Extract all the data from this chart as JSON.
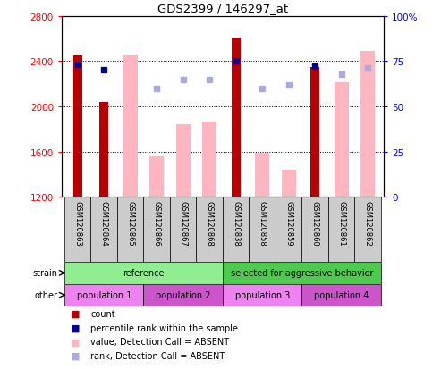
{
  "title": "GDS2399 / 146297_at",
  "samples": [
    "GSM120863",
    "GSM120864",
    "GSM120865",
    "GSM120866",
    "GSM120867",
    "GSM120868",
    "GSM120838",
    "GSM120858",
    "GSM120859",
    "GSM120860",
    "GSM120861",
    "GSM120862"
  ],
  "count_values": [
    2450,
    2040,
    null,
    null,
    null,
    null,
    2610,
    null,
    null,
    2350,
    null,
    null
  ],
  "absent_bar_values": [
    null,
    null,
    2460,
    1560,
    1840,
    1870,
    null,
    1590,
    1440,
    null,
    2210,
    2490
  ],
  "percentile_rank_pct": [
    73,
    70,
    null,
    null,
    null,
    null,
    75,
    null,
    null,
    72,
    null,
    null
  ],
  "absent_rank_pct": [
    null,
    null,
    null,
    60,
    65,
    65,
    null,
    60,
    62,
    null,
    68,
    71
  ],
  "ylim": [
    1200,
    2800
  ],
  "yticks": [
    1200,
    1600,
    2000,
    2400,
    2800
  ],
  "y2lim": [
    0,
    100
  ],
  "y2ticks": [
    0,
    25,
    50,
    75,
    100
  ],
  "y2ticklabels": [
    "0",
    "25",
    "50",
    "75",
    "100%"
  ],
  "strain_groups": [
    {
      "label": "reference",
      "start": 0,
      "end": 6,
      "color": "#90EE90"
    },
    {
      "label": "selected for aggressive behavior",
      "start": 6,
      "end": 12,
      "color": "#4ECA4E"
    }
  ],
  "other_groups": [
    {
      "label": "population 1",
      "start": 0,
      "end": 3,
      "color": "#EE82EE"
    },
    {
      "label": "population 2",
      "start": 3,
      "end": 6,
      "color": "#CC55CC"
    },
    {
      "label": "population 3",
      "start": 6,
      "end": 9,
      "color": "#EE82EE"
    },
    {
      "label": "population 4",
      "start": 9,
      "end": 12,
      "color": "#CC55CC"
    }
  ],
  "count_color": "#B80000",
  "absent_bar_color": "#FFB6C1",
  "percentile_color": "#000099",
  "absent_rank_color": "#AAAADD",
  "legend_items": [
    {
      "label": "count",
      "color": "#B80000"
    },
    {
      "label": "percentile rank within the sample",
      "color": "#000099"
    },
    {
      "label": "value, Detection Call = ABSENT",
      "color": "#FFB6C1"
    },
    {
      "label": "rank, Detection Call = ABSENT",
      "color": "#AAAADD"
    }
  ]
}
